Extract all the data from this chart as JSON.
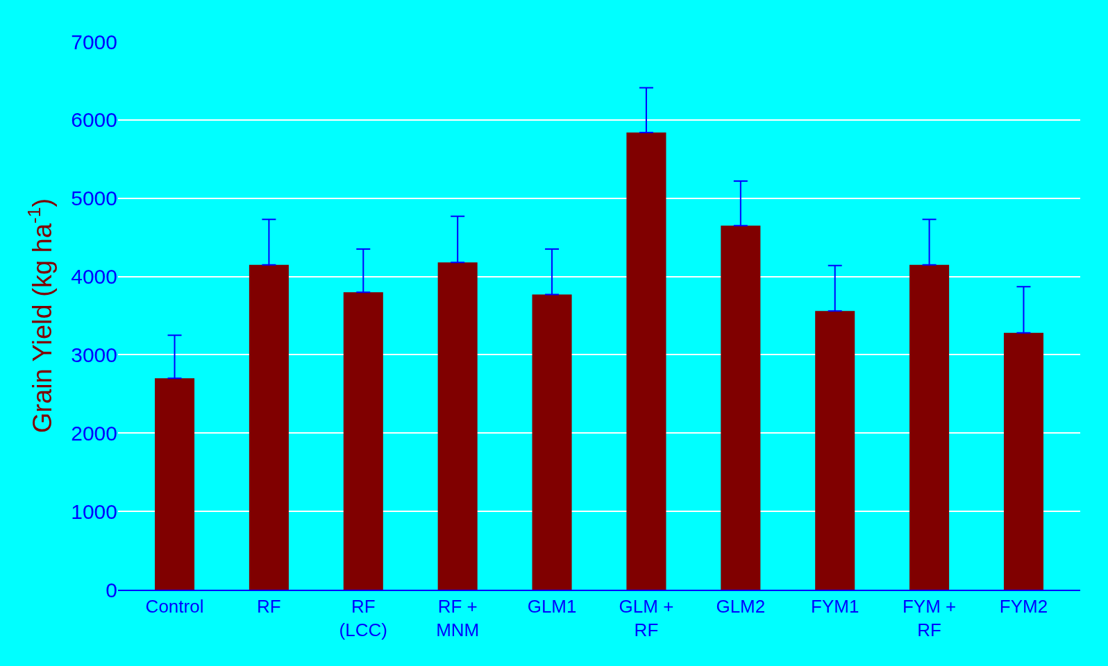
{
  "chart_data": {
    "type": "bar",
    "ylabel": "Grain Yield (kg ha$^{-1}$)",
    "categories": [
      "Control",
      "RF",
      "RF (LCC)",
      "RF + MNM",
      "GLM1",
      "GLM + RF",
      "GLM2",
      "FYM1",
      "FYM + RF",
      "FYM2"
    ],
    "values": [
      2700,
      4150,
      3800,
      4180,
      3770,
      5840,
      4650,
      3560,
      4150,
      3280
    ],
    "errors": [
      [
        2700,
        3250
      ],
      [
        4150,
        4730
      ],
      [
        3800,
        4350
      ],
      [
        4180,
        4770
      ],
      [
        3770,
        4350
      ],
      [
        5840,
        6410
      ],
      [
        4650,
        5220
      ],
      [
        3560,
        4140
      ],
      [
        4150,
        4730
      ],
      [
        3280,
        3870
      ]
    ],
    "color": "#800000",
    "ylim": [
      0,
      7000
    ],
    "yticks": [
      0,
      1000,
      2000,
      3000,
      4000,
      5000,
      6000,
      7000
    ],
    "grid": "y"
  }
}
